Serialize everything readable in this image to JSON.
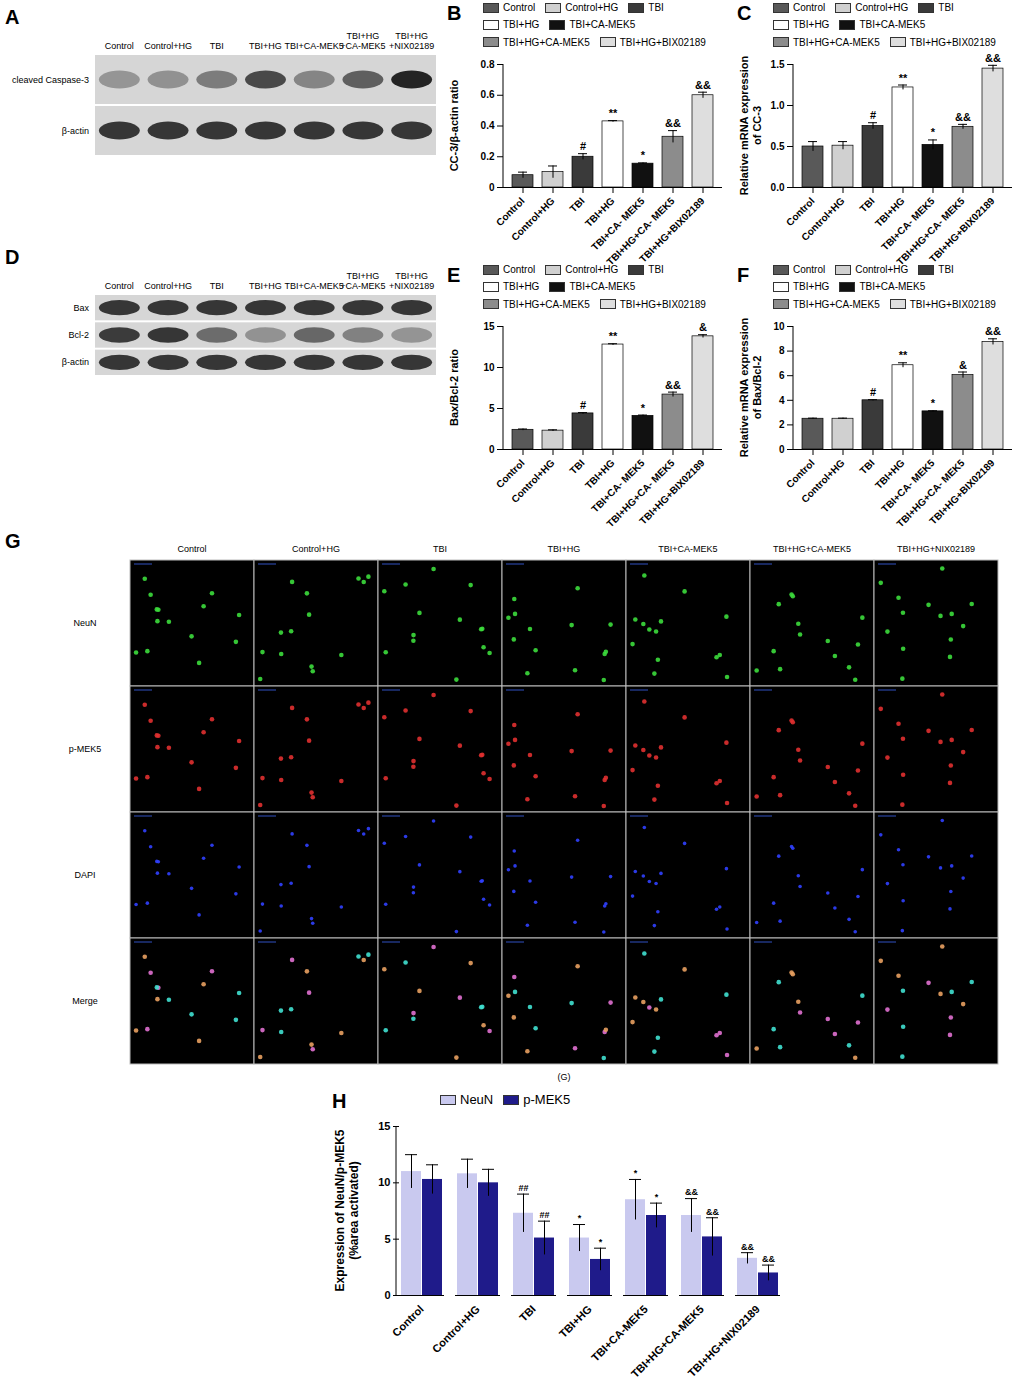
{
  "blots": [
    {
      "panel": "A",
      "lanes": [
        "Control",
        "Control+HG",
        "TBI",
        "TBI+HG",
        "TBI+CA-MEK5",
        "TBI+HG\n+CA-MEK5",
        "TBI+HG\n+NIX02189"
      ],
      "rows": [
        "cleaved Caspase-3",
        "β-actin"
      ]
    },
    {
      "panel": "D",
      "lanes": [
        "Control",
        "Control+HG",
        "TBI",
        "TBI+HG",
        "TBI+CA-MEK5",
        "TBI+HG\n+CA-MEK5",
        "TBI+HG\n+NIX02189"
      ],
      "rows": [
        "Bax",
        "Bcl-2",
        "β-actin"
      ]
    }
  ],
  "chart_data": [
    {
      "panel": "B",
      "type": "bar",
      "categories": [
        "Control",
        "Control+HG",
        "TBI",
        "TBI+HG",
        "TBI+CA- MEK5",
        "TBI+HG+CA- MEK5",
        "TBI+HG+BIX02189"
      ],
      "legend_labels": [
        "Control",
        "Control+HG",
        "TBI",
        "TBI+HG",
        "TBI+CA-MEK5",
        "TBI+HG+CA-MEK5",
        "TBI+HG+BIX02189"
      ],
      "values": [
        0.08,
        0.1,
        0.2,
        0.43,
        0.155,
        0.33,
        0.6
      ],
      "errors": [
        0.02,
        0.04,
        0.02,
        0.005,
        0.005,
        0.04,
        0.02
      ],
      "significance": [
        null,
        null,
        "#",
        "**",
        "*",
        "&&",
        "&&"
      ],
      "colors": [
        "#595959",
        "#d0d0d0",
        "#3a3a3a",
        "#ffffff",
        "#111111",
        "#8c8c8c",
        "#dedede"
      ],
      "y_label": "CC-3/β-actin ratio",
      "ylim": [
        0,
        0.8
      ],
      "yticks": [
        0,
        0.2,
        0.4,
        0.6,
        0.8
      ],
      "legend": "top"
    },
    {
      "panel": "C",
      "type": "bar",
      "categories": [
        "Control",
        "Control+HG",
        "TBI",
        "TBI+HG",
        "TBI+CA- MEK5",
        "TBI+HG+CA- MEK5",
        "TBI+HG+BIX02189"
      ],
      "legend_labels": [
        "Control",
        "Control+HG",
        "TBI",
        "TBI+HG",
        "TBI+CA-MEK5",
        "TBI+HG+CA-MEK5",
        "TBI+HG+BIX02189"
      ],
      "values": [
        0.5,
        0.51,
        0.75,
        1.22,
        0.52,
        0.74,
        1.45
      ],
      "errors": [
        0.06,
        0.05,
        0.04,
        0.03,
        0.06,
        0.03,
        0.04
      ],
      "significance": [
        null,
        null,
        "#",
        "**",
        "*",
        "&&",
        "&&"
      ],
      "colors": [
        "#595959",
        "#d0d0d0",
        "#3a3a3a",
        "#ffffff",
        "#111111",
        "#8c8c8c",
        "#dedede"
      ],
      "y_label": "Relative mRNA expression\nof CC-3",
      "ylim": [
        0,
        1.5
      ],
      "yticks": [
        {
          "value": 0,
          "label": "0.0"
        },
        0.5,
        {
          "value": 1,
          "label": "1.0"
        },
        1.5
      ],
      "legend": "top"
    },
    {
      "panel": "E",
      "type": "bar",
      "categories": [
        "Control",
        "Control+HG",
        "TBI",
        "TBI+HG",
        "TBI+CA- MEK5",
        "TBI+HG+CA- MEK5",
        "TBI+HG+BIX02189"
      ],
      "legend_labels": [
        "Control",
        "Control+HG",
        "TBI",
        "TBI+HG",
        "TBI+CA-MEK5",
        "TBI+HG+CA-MEK5",
        "TBI+HG+BIX02189"
      ],
      "values": [
        2.4,
        2.3,
        4.4,
        12.8,
        4.1,
        6.7,
        13.8
      ],
      "errors": [
        0.1,
        0.1,
        0.1,
        0.1,
        0.1,
        0.3,
        0.2
      ],
      "significance": [
        null,
        null,
        "#",
        "**",
        "*",
        "&&",
        "&"
      ],
      "colors": [
        "#595959",
        "#d0d0d0",
        "#3a3a3a",
        "#ffffff",
        "#111111",
        "#8c8c8c",
        "#dedede"
      ],
      "y_label": "Bax/Bcl-2 ratio",
      "ylim": [
        0,
        15
      ],
      "yticks": [
        0,
        5,
        10,
        15
      ],
      "legend": "top"
    },
    {
      "panel": "F",
      "type": "bar",
      "categories": [
        "Control",
        "Control+HG",
        "TBI",
        "TBI+HG",
        "TBI+CA- MEK5",
        "TBI+HG+CA- MEK5",
        "TBI+HG+BIX02189"
      ],
      "legend_labels": [
        "Control",
        "Control+HG",
        "TBI",
        "TBI+HG",
        "TBI+CA-MEK5",
        "TBI+HG+CA-MEK5",
        "TBI+HG+BIX02189"
      ],
      "values": [
        2.5,
        2.5,
        4.0,
        6.85,
        3.1,
        6.05,
        8.75
      ],
      "errors": [
        0.05,
        0.05,
        0.05,
        0.2,
        0.05,
        0.25,
        0.25
      ],
      "significance": [
        null,
        null,
        "#",
        "**",
        "*",
        "&",
        "&&"
      ],
      "colors": [
        "#595959",
        "#d0d0d0",
        "#3a3a3a",
        "#ffffff",
        "#111111",
        "#8c8c8c",
        "#dedede"
      ],
      "y_label": "Relative mRNA expression\nof Bax/Bcl-2",
      "ylim": [
        0,
        10
      ],
      "yticks": [
        0,
        2,
        4,
        6,
        8,
        10
      ],
      "legend": "top"
    },
    {
      "panel": "H",
      "type": "bar",
      "categories": [
        "Control",
        "Control+HG",
        "TBI",
        "TBI+HG",
        "TBI+CA-MEK5",
        "TBI+HG+CA-MEK5",
        "TBI+HG+NIX02189"
      ],
      "series": [
        {
          "name": "NeuN",
          "color": "#c9c9ef",
          "values": [
            11.0,
            10.8,
            7.3,
            5.1,
            8.5,
            7.1,
            3.3
          ],
          "errors": [
            1.5,
            1.3,
            1.7,
            1.2,
            1.8,
            1.5,
            0.5
          ],
          "significance": [
            null,
            null,
            "##",
            "*",
            "*",
            "&&",
            "&&"
          ]
        },
        {
          "name": "p-MEK5",
          "color": "#1f1b8a",
          "values": [
            10.3,
            10.0,
            5.1,
            3.2,
            7.1,
            5.2,
            2.0
          ],
          "errors": [
            1.3,
            1.2,
            1.5,
            1.0,
            1.1,
            1.7,
            0.7
          ],
          "significance": [
            null,
            null,
            "##",
            "*",
            "*",
            "&&",
            "&&"
          ]
        }
      ],
      "y_label": "Expression of NeuN/p-MEK5\n(%area activated)",
      "ylim": [
        0,
        15
      ],
      "yticks": [
        0,
        5,
        10,
        15
      ],
      "legend": "top"
    }
  ],
  "micrograph": {
    "panel": "G",
    "columns": [
      "Control",
      "Control+HG",
      "TBI",
      "TBI+HG",
      "TBI+CA-MEK5",
      "TBI+HG+CA-MEK5",
      "TBI+HG+NIX02189"
    ],
    "rows": [
      "NeuN",
      "p-MEK5",
      "DAPI",
      "Merge"
    ],
    "caption": "(G)"
  }
}
